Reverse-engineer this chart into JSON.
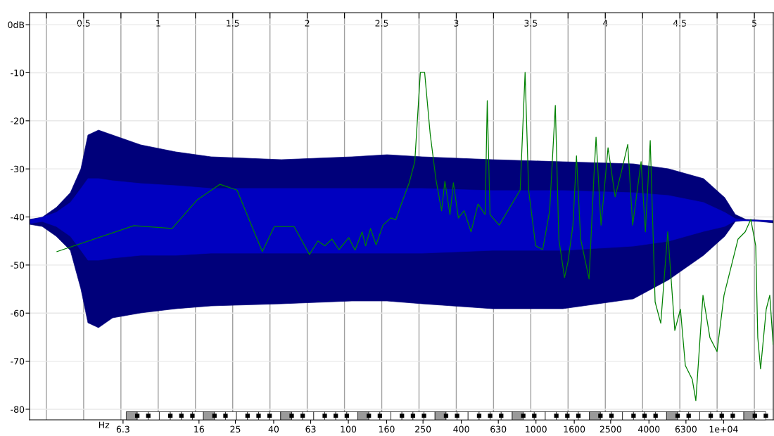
{
  "chart_data": {
    "type": "line",
    "xlim": [
      0.137,
      5.127
    ],
    "ylim": [
      -82.2,
      2.5
    ],
    "xticks": [
      {
        "value": 0.25,
        "label": null
      },
      0.5,
      {
        "value": 0.75,
        "label": null
      },
      1,
      {
        "value": 1.25,
        "label": null
      },
      1.5,
      {
        "value": 1.75,
        "label": null
      },
      2,
      {
        "value": 2.25,
        "label": null
      },
      2.5,
      {
        "value": 2.75,
        "label": null
      },
      3,
      {
        "value": 3.25,
        "label": null
      },
      3.5,
      {
        "value": 3.75,
        "label": null
      },
      4,
      {
        "value": 4.25,
        "label": null
      },
      4.5,
      {
        "value": 4.75,
        "label": null
      },
      5
    ],
    "yticks": [
      {
        "value": 0,
        "label": "0dB"
      },
      -10,
      -20,
      -30,
      -40,
      -50,
      -60,
      -70,
      -80
    ],
    "x2label": "Hz",
    "x2lim": [
      2.0,
      18400
    ],
    "log": "x2",
    "x2ticks": [
      6.3,
      16,
      25,
      40,
      63,
      100,
      160,
      250,
      400,
      630,
      1000,
      1600,
      2500,
      4000,
      6300,
      {
        "value": 10000,
        "label": "1e+04"
      }
    ],
    "grid": true,
    "legend": false,
    "series": [
      {
        "axis": "x2",
        "color": "#008000",
        "x": [
          2.8,
          7.2,
          11.5,
          15.6,
          20.7,
          25.5,
          34.8,
          40.3,
          51.4,
          62.1,
          68.8,
          75,
          81.7,
          89.1,
          100.5,
          108.6,
          118.4,
          123.6,
          131.3,
          140.6,
          153,
          168.5,
          179,
          190,
          211,
          226,
          242,
          255,
          273,
          293,
          314,
          327,
          348,
          363,
          386,
          414,
          451,
          491,
          536,
          550,
          569,
          637,
          824,
          875,
          914,
          996,
          1086,
          1183,
          1268,
          1324,
          1419,
          1482,
          1574,
          1644,
          1730,
          1919,
          2037,
          2090,
          2222,
          2421,
          2642,
          2878,
          3085,
          3275,
          3632,
          3828,
          4064,
          4316,
          4625,
          5039,
          5495,
          5888,
          6252,
          6808,
          7112,
          7762,
          8453,
          9226,
          10050,
          10960,
          11940,
          13030,
          13960,
          14830,
          15210,
          15740,
          16870,
          17620,
          18370
        ],
        "values": [
          -47.2,
          -41.8,
          -42.4,
          -36.5,
          -33.2,
          -34.4,
          -47.2,
          -42,
          -42,
          -47.8,
          -45,
          -46,
          -44.6,
          -46.8,
          -44.3,
          -46.9,
          -43.1,
          -46,
          -42.4,
          -45.8,
          -41.7,
          -40.2,
          -40.6,
          -37.7,
          -32.9,
          -28.5,
          -9.9,
          -9.9,
          -22.7,
          -32.2,
          -38.7,
          -32.6,
          -39.5,
          -32.9,
          -40.2,
          -38.7,
          -43.1,
          -37.3,
          -39.5,
          -15.8,
          -39.5,
          -41.7,
          -34.4,
          -9.9,
          -34.4,
          -46,
          -46.8,
          -38.7,
          -16.8,
          -44.6,
          -52.6,
          -49.3,
          -41.7,
          -27.3,
          -44.6,
          -52.9,
          -31.4,
          -23.4,
          -41.7,
          -25.6,
          -35.8,
          -30,
          -24.9,
          -41.7,
          -28.5,
          -43.1,
          -24.1,
          -57.7,
          -62.1,
          -43.1,
          -63.6,
          -59.2,
          -70.9,
          -73.8,
          -78.2,
          -56.3,
          -65.1,
          -68,
          -56.3,
          -50.4,
          -44.6,
          -43.1,
          -40.5,
          -46,
          -65.1,
          -71.6,
          -59.2,
          -56.3,
          -66.5
        ]
      }
    ]
  }
}
